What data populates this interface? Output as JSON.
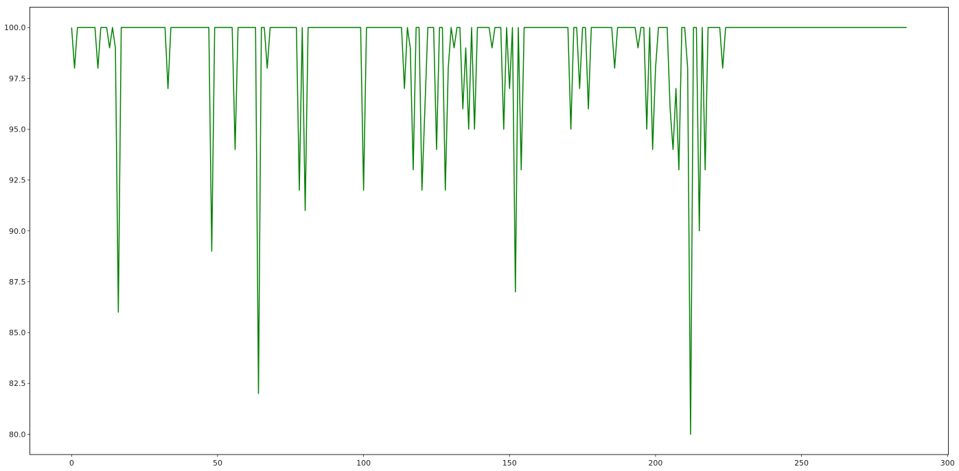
{
  "chart_data": {
    "type": "line",
    "title": "",
    "xlabel": "",
    "ylabel": "",
    "xlim": [
      -14.3,
      300.3
    ],
    "ylim": [
      79.0,
      101.0
    ],
    "grid": false,
    "xticks": [
      0,
      50,
      100,
      150,
      200,
      250,
      300
    ],
    "xtick_labels": [
      "0",
      "50",
      "100",
      "150",
      "200",
      "250",
      "300"
    ],
    "yticks": [
      80.0,
      82.5,
      85.0,
      87.5,
      90.0,
      92.5,
      95.0,
      97.5,
      100.0
    ],
    "ytick_labels": [
      "80.0",
      "82.5",
      "85.0",
      "87.5",
      "90.0",
      "92.5",
      "95.0",
      "97.5",
      "100.0"
    ],
    "series": [
      {
        "color": "#008000",
        "x_start": 0,
        "x_step": 1,
        "values": [
          100,
          98,
          100,
          100,
          100,
          100,
          100,
          100,
          100,
          98,
          100,
          100,
          100,
          99,
          100,
          99,
          86,
          100,
          100,
          100,
          100,
          100,
          100,
          100,
          100,
          100,
          100,
          100,
          100,
          100,
          100,
          100,
          100,
          97,
          100,
          100,
          100,
          100,
          100,
          100,
          100,
          100,
          100,
          100,
          100,
          100,
          100,
          100,
          89,
          100,
          100,
          100,
          100,
          100,
          100,
          100,
          94,
          100,
          100,
          100,
          100,
          100,
          100,
          100,
          82,
          100,
          100,
          98,
          100,
          100,
          100,
          100,
          100,
          100,
          100,
          100,
          100,
          100,
          92,
          100,
          91,
          100,
          100,
          100,
          100,
          100,
          100,
          100,
          100,
          100,
          100,
          100,
          100,
          100,
          100,
          100,
          100,
          100,
          100,
          100,
          92,
          100,
          100,
          100,
          100,
          100,
          100,
          100,
          100,
          100,
          100,
          100,
          100,
          100,
          97,
          100,
          99,
          93,
          100,
          100,
          92,
          96,
          100,
          100,
          100,
          94,
          100,
          100,
          92,
          98,
          100,
          99,
          100,
          100,
          96,
          99,
          95,
          100,
          95,
          100,
          100,
          100,
          100,
          100,
          99,
          100,
          100,
          100,
          95,
          100,
          97,
          100,
          87,
          100,
          93,
          100,
          100,
          100,
          100,
          100,
          100,
          100,
          100,
          100,
          100,
          100,
          100,
          100,
          100,
          100,
          100,
          95,
          100,
          100,
          97,
          100,
          100,
          96,
          100,
          100,
          100,
          100,
          100,
          100,
          100,
          100,
          98,
          100,
          100,
          100,
          100,
          100,
          100,
          100,
          99,
          100,
          100,
          95,
          100,
          94,
          98,
          100,
          100,
          100,
          100,
          96,
          94,
          97,
          93,
          100,
          100,
          98,
          80,
          100,
          100,
          90,
          100,
          93,
          100,
          100,
          100,
          100,
          100,
          98,
          100,
          100,
          100,
          100,
          100,
          100,
          100,
          100,
          100,
          100,
          100,
          100,
          100,
          100,
          100,
          100,
          100,
          100,
          100,
          100,
          100,
          100,
          100,
          100,
          100,
          100,
          100,
          100,
          100,
          100,
          100,
          100,
          100,
          100,
          100,
          100,
          100,
          100,
          100,
          100,
          100,
          100,
          100,
          100,
          100,
          100,
          100,
          100,
          100,
          100,
          100,
          100,
          100,
          100,
          100,
          100,
          100,
          100,
          100,
          100,
          100,
          100,
          100
        ]
      }
    ]
  }
}
